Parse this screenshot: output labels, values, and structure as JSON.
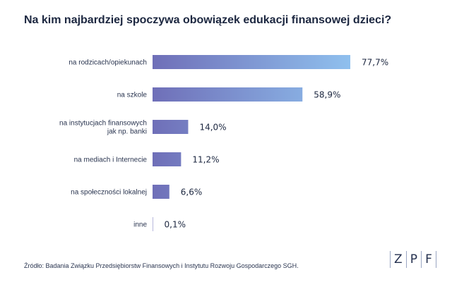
{
  "title": "Na kim najbardziej spoczywa obowiązek edukacji finansowej dzieci?",
  "source": "Źródło: Badania Związku Przedsiębiorstw Finansowych i Instytutu Rozwoju Gospodarczego SGH.",
  "logo": {
    "letters": [
      "Z",
      "P",
      "F"
    ]
  },
  "colors": {
    "bar_start": "#6f6fb8",
    "bar_end": "#8fc0ee",
    "title": "#1c2740",
    "text": "#2a3550"
  },
  "chart_data": {
    "type": "bar",
    "orientation": "horizontal",
    "title": "Na kim najbardziej spoczywa obowiązek edukacji finansowej dzieci?",
    "xlabel": "",
    "ylabel": "",
    "unit": "%",
    "xlim": [
      0,
      100
    ],
    "grid": false,
    "legend": "none",
    "categories": [
      [
        "na rodzicach/opiekunach"
      ],
      [
        "na szkole"
      ],
      [
        "na instytucjach finansowych",
        "jak np. banki"
      ],
      [
        "na mediach i Internecie"
      ],
      [
        "na społeczności lokalnej"
      ],
      [
        "inne"
      ]
    ],
    "values": [
      77.7,
      58.9,
      14.0,
      11.2,
      6.6,
      0.1
    ],
    "value_labels": [
      "77,7%",
      "58,9%",
      "14,0%",
      "11,2%",
      "6,6%",
      "0,1%"
    ]
  }
}
